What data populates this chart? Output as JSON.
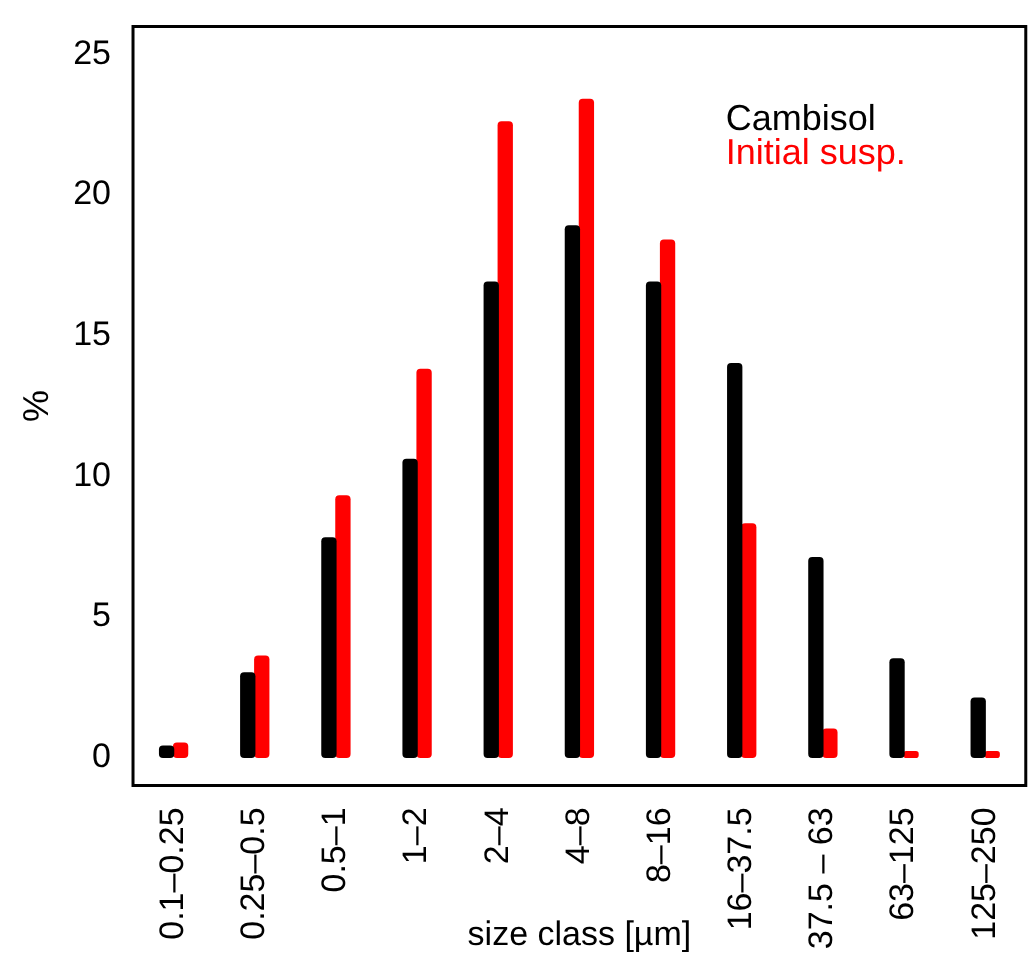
{
  "chart_data": {
    "type": "bar",
    "xlabel": "size class [µm]",
    "ylabel": "%",
    "categories": [
      "0.1–0.25",
      "0.25–0.5",
      "0.5–1",
      "1–2",
      "2–4",
      "4–8",
      "8–16",
      "16–37.5",
      "37.5 – 63",
      "63–125",
      "125–250"
    ],
    "series": [
      {
        "name": "Cambisol",
        "color": "#000000",
        "values": [
          0.4,
          3.0,
          7.8,
          10.6,
          16.9,
          18.9,
          16.9,
          14.0,
          7.1,
          3.5,
          2.1
        ]
      },
      {
        "name": "Initial susp.",
        "color": "#ff0000",
        "values": [
          0.5,
          3.6,
          9.3,
          13.8,
          22.6,
          23.4,
          18.4,
          8.3,
          1.0,
          0.2,
          0.2
        ]
      }
    ],
    "ylim": [
      -1,
      26
    ],
    "yticks": [
      0,
      5,
      10,
      15,
      20,
      25
    ],
    "grid": false,
    "legend": "top right"
  }
}
